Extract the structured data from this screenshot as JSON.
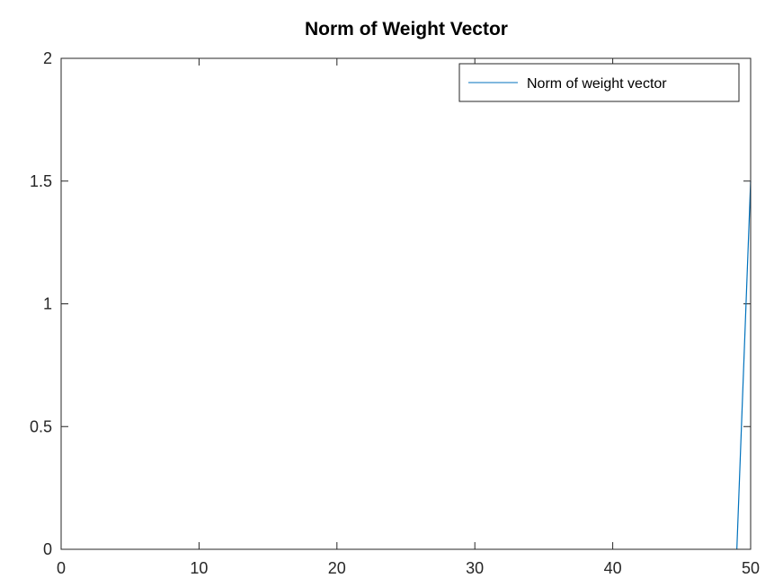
{
  "chart_data": {
    "type": "line",
    "title": "Norm of Weight Vector",
    "xlabel": "",
    "ylabel": "",
    "xlim": [
      0,
      50
    ],
    "ylim": [
      0,
      2
    ],
    "x_ticks": [
      0,
      10,
      20,
      30,
      40,
      50
    ],
    "x_tick_labels": [
      "0",
      "10",
      "20",
      "30",
      "40",
      "50"
    ],
    "y_ticks": [
      0,
      0.5,
      1,
      1.5,
      2
    ],
    "y_tick_labels": [
      "0",
      "0.5",
      "1",
      "1.5",
      "2"
    ],
    "grid": false,
    "legend_position": "top-right",
    "series": [
      {
        "name": "Norm of weight vector",
        "color": "#0072bd",
        "x": [
          49,
          50
        ],
        "y": [
          0,
          1.5
        ]
      }
    ]
  }
}
